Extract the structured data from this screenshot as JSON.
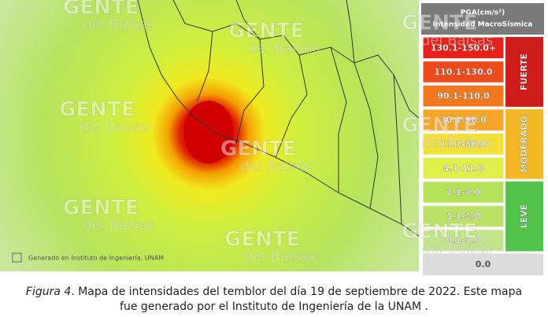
{
  "map": {
    "credit": "Generado en Instituto de Ingeniería, UNAM",
    "watermark": {
      "brand": "GENTE",
      "sub": "del Balsas"
    }
  },
  "legend": {
    "header": [
      "PGA(cm/s²)",
      "Intensidad MacroSísmica"
    ],
    "groups": [
      {
        "label": "FUERTE",
        "color": "#d01b1b",
        "rows": [
          {
            "label": "130.1-150.0+",
            "color": "#e8201a"
          },
          {
            "label": "110.1-130.0",
            "color": "#ee4a1c"
          },
          {
            "label": "90.1-110.0",
            "color": "#f2781f"
          }
        ]
      },
      {
        "label": "MODERADO",
        "color": "#f4b824",
        "rows": [
          {
            "label": "30.1-90.0",
            "color": "#f7a628"
          },
          {
            "label": "11.1-30.0",
            "color": "#f3e13a"
          },
          {
            "label": "4.1-11.0",
            "color": "#dff04a"
          }
        ]
      },
      {
        "label": "LEVE",
        "color": "#52c44c",
        "rows": [
          {
            "label": "2.1-4.0",
            "color": "#b4e35a"
          },
          {
            "label": "1.1-2.0",
            "color": "#b9e267"
          },
          {
            "label": "0.1-1.0",
            "color": "#c3e58a"
          }
        ]
      }
    ],
    "zero": {
      "label": "0.0",
      "color": "#dcdcdc"
    }
  },
  "caption": {
    "figure": "Figura 4",
    "text": ". Mapa de intensidades del temblor del día 19 de septiembre de 2022. Este mapa fue generado por el Instituto de Ingeniería de la UNAM ."
  }
}
